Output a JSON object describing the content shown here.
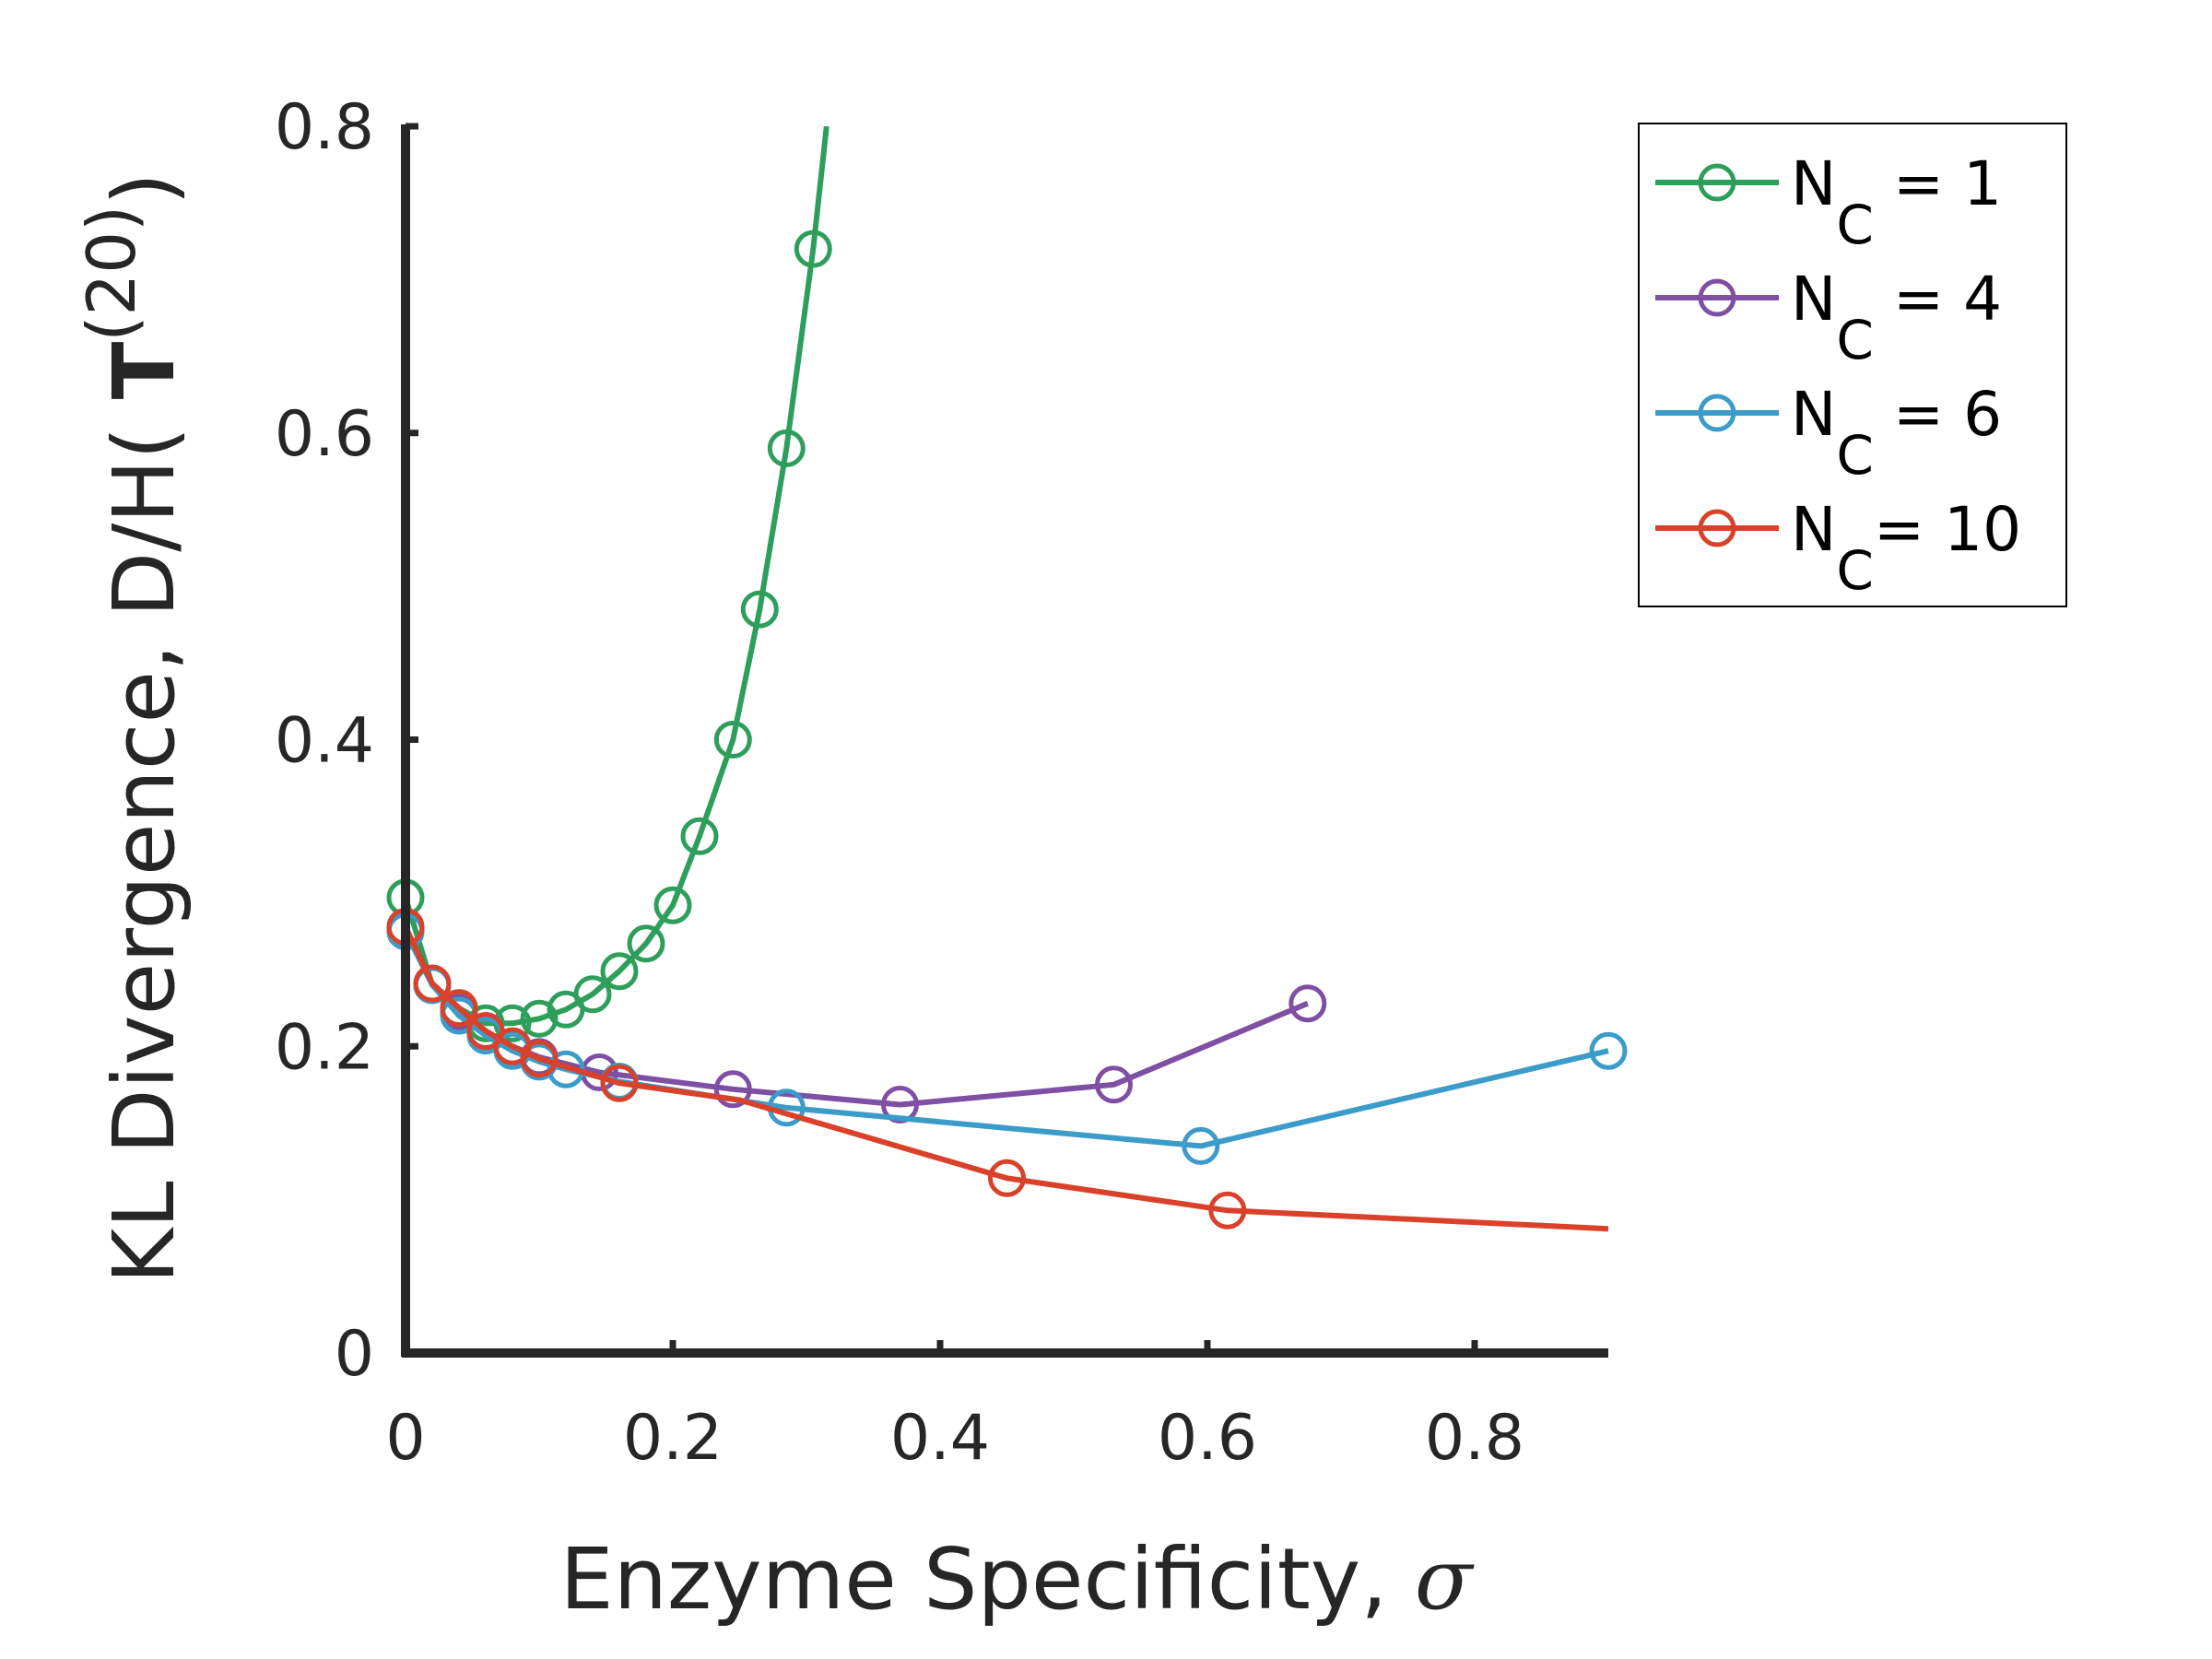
{
  "chart_data": {
    "type": "line",
    "xlabel": "Enzyme Specificity, ",
    "xlabel_symbol": "σ",
    "ylabel_prefix": "KL Divergence, D/H( ",
    "ylabel_bold": "T",
    "ylabel_sup": "(20)",
    "ylabel_suffix": ")",
    "xlim": [
      0,
      0.9
    ],
    "ylim": [
      0,
      0.8
    ],
    "xticks": [
      0,
      0.2,
      0.4,
      0.6,
      0.8
    ],
    "xtick_labels": [
      "0",
      "0.2",
      "0.4",
      "0.6",
      "0.8"
    ],
    "yticks": [
      0,
      0.2,
      0.4,
      0.6,
      0.8
    ],
    "ytick_labels": [
      "0",
      "0.2",
      "0.4",
      "0.6",
      "0.8"
    ],
    "grid": false,
    "legend_position": "outside-top-right",
    "series": [
      {
        "name": "N_C = 1",
        "legend_main": "N",
        "legend_sub": "C",
        "legend_rest": " = 1",
        "color": "#2e9e5b",
        "x": [
          0,
          0.02,
          0.04,
          0.06,
          0.08,
          0.1,
          0.12,
          0.14,
          0.16,
          0.18,
          0.2,
          0.22,
          0.245,
          0.265,
          0.285,
          0.305,
          0.315
        ],
        "y": [
          0.297,
          0.24,
          0.225,
          0.215,
          0.215,
          0.218,
          0.224,
          0.234,
          0.249,
          0.267,
          0.292,
          0.337,
          0.4,
          0.485,
          0.59,
          0.72,
          0.8
        ],
        "markers": [
          true,
          true,
          true,
          true,
          true,
          true,
          true,
          true,
          true,
          true,
          true,
          true,
          true,
          true,
          true,
          true,
          false
        ]
      },
      {
        "name": "N_C = 4",
        "legend_main": "N",
        "legend_sub": "C",
        "legend_rest": " = 4",
        "color": "#7e4fa3",
        "x": [
          0,
          0.02,
          0.04,
          0.06,
          0.08,
          0.1,
          0.145,
          0.245,
          0.37,
          0.53,
          0.675
        ],
        "y": [
          0.275,
          0.24,
          0.222,
          0.21,
          0.2,
          0.193,
          0.183,
          0.172,
          0.162,
          0.175,
          0.228
        ],
        "markers": [
          true,
          true,
          true,
          true,
          true,
          true,
          true,
          true,
          true,
          true,
          true
        ]
      },
      {
        "name": "N_C = 6",
        "legend_main": "N",
        "legend_sub": "C",
        "legend_rest": " = 6",
        "color": "#3b9cc9",
        "x": [
          0,
          0.02,
          0.04,
          0.06,
          0.08,
          0.1,
          0.12,
          0.16,
          0.285,
          0.595,
          0.9
        ],
        "y": [
          0.275,
          0.24,
          0.22,
          0.207,
          0.197,
          0.19,
          0.185,
          0.177,
          0.16,
          0.135,
          0.197
        ],
        "markers": [
          true,
          true,
          true,
          true,
          true,
          true,
          true,
          true,
          true,
          true,
          true
        ]
      },
      {
        "name": "N_C= 10",
        "legend_main": "N",
        "legend_sub": "C",
        "legend_rest": "= 10",
        "color": "#d9412b",
        "x": [
          0,
          0.02,
          0.04,
          0.06,
          0.08,
          0.1,
          0.16,
          0.25,
          0.45,
          0.615,
          0.9
        ],
        "y": [
          0.278,
          0.241,
          0.225,
          0.21,
          0.2,
          0.192,
          0.176,
          0.165,
          0.114,
          0.093,
          0.081
        ],
        "markers": [
          true,
          true,
          true,
          true,
          true,
          true,
          true,
          false,
          true,
          true,
          false
        ]
      }
    ]
  }
}
